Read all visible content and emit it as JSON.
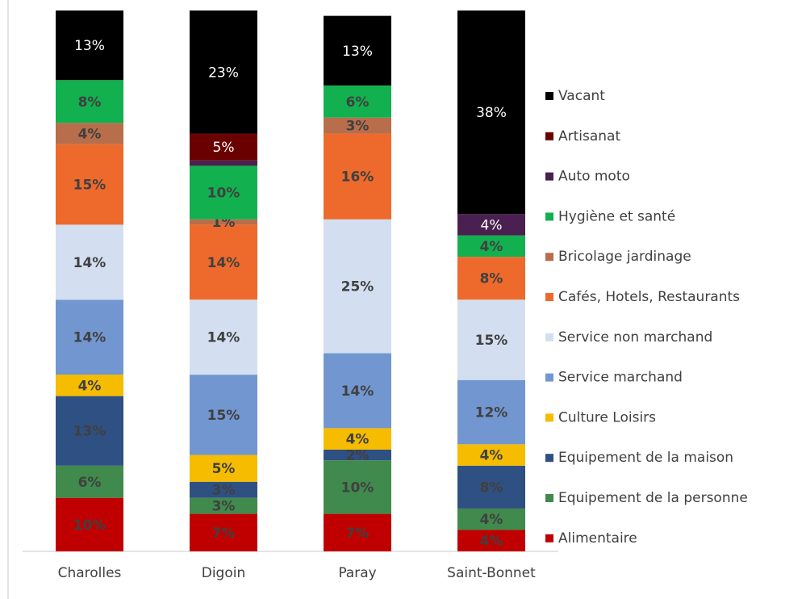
{
  "chart_data": {
    "type": "stacked_bar",
    "categories": [
      "Charolles",
      "Digoin",
      "Paray",
      "Saint-Bonnet"
    ],
    "ylim": [
      0,
      101
    ],
    "series": [
      {
        "name": "Alimentaire",
        "color": "#c00000",
        "values": [
          10,
          7,
          7,
          4
        ],
        "value_labels": [
          "10%",
          "7%",
          "7%",
          "4%"
        ]
      },
      {
        "name": "Equipement de la personne",
        "color": "#3f8a4c",
        "values": [
          6,
          3,
          10,
          4
        ],
        "value_labels": [
          "6%",
          "3%",
          "10%",
          "4%"
        ]
      },
      {
        "name": "Equipement de la maison",
        "color": "#2f5083",
        "values": [
          13,
          3,
          2,
          8
        ],
        "value_labels": [
          "13%",
          "3%",
          "2%",
          "8%"
        ]
      },
      {
        "name": "Culture Loisirs",
        "color": "#f5bc00",
        "values": [
          4,
          5,
          4,
          4
        ],
        "value_labels": [
          "4%",
          "5%",
          "4%",
          "4%"
        ]
      },
      {
        "name": "Service marchand",
        "color": "#7297d0",
        "values": [
          14,
          15,
          14,
          12
        ],
        "value_labels": [
          "14%",
          "15%",
          "14%",
          "12%"
        ]
      },
      {
        "name": "Service non marchand",
        "color": "#d3dff0",
        "values": [
          14,
          14,
          25,
          15
        ],
        "value_labels": [
          "14%",
          "14%",
          "25%",
          "15%"
        ]
      },
      {
        "name": "Cafés, Hotels, Restaurants",
        "color": "#ee6a2c",
        "values": [
          15,
          14,
          16,
          8
        ],
        "value_labels": [
          "15%",
          "14%",
          "16%",
          "8%"
        ]
      },
      {
        "name": "Bricolage jardinage",
        "color": "#b86e4b",
        "values": [
          4,
          1,
          3,
          0
        ],
        "value_labels": [
          "4%",
          "1%",
          "3%",
          null
        ]
      },
      {
        "name": "Hygiène et santé",
        "color": "#12b04f",
        "values": [
          8,
          10,
          6,
          4
        ],
        "value_labels": [
          "8%",
          "10%",
          "6%",
          "4%"
        ]
      },
      {
        "name": "Auto moto",
        "color": "#4a2050",
        "values": [
          0,
          1,
          0,
          4
        ],
        "value_labels": [
          null,
          null,
          null,
          "4%"
        ]
      },
      {
        "name": "Artisanat",
        "color": "#6b0000",
        "values": [
          0,
          5,
          0,
          0
        ],
        "value_labels": [
          null,
          "5%",
          null,
          null
        ]
      },
      {
        "name": "Vacant",
        "color": "#000000",
        "values": [
          13,
          23,
          13,
          38
        ],
        "value_labels": [
          "13%",
          "23%",
          "13%",
          "38%"
        ]
      }
    ]
  }
}
